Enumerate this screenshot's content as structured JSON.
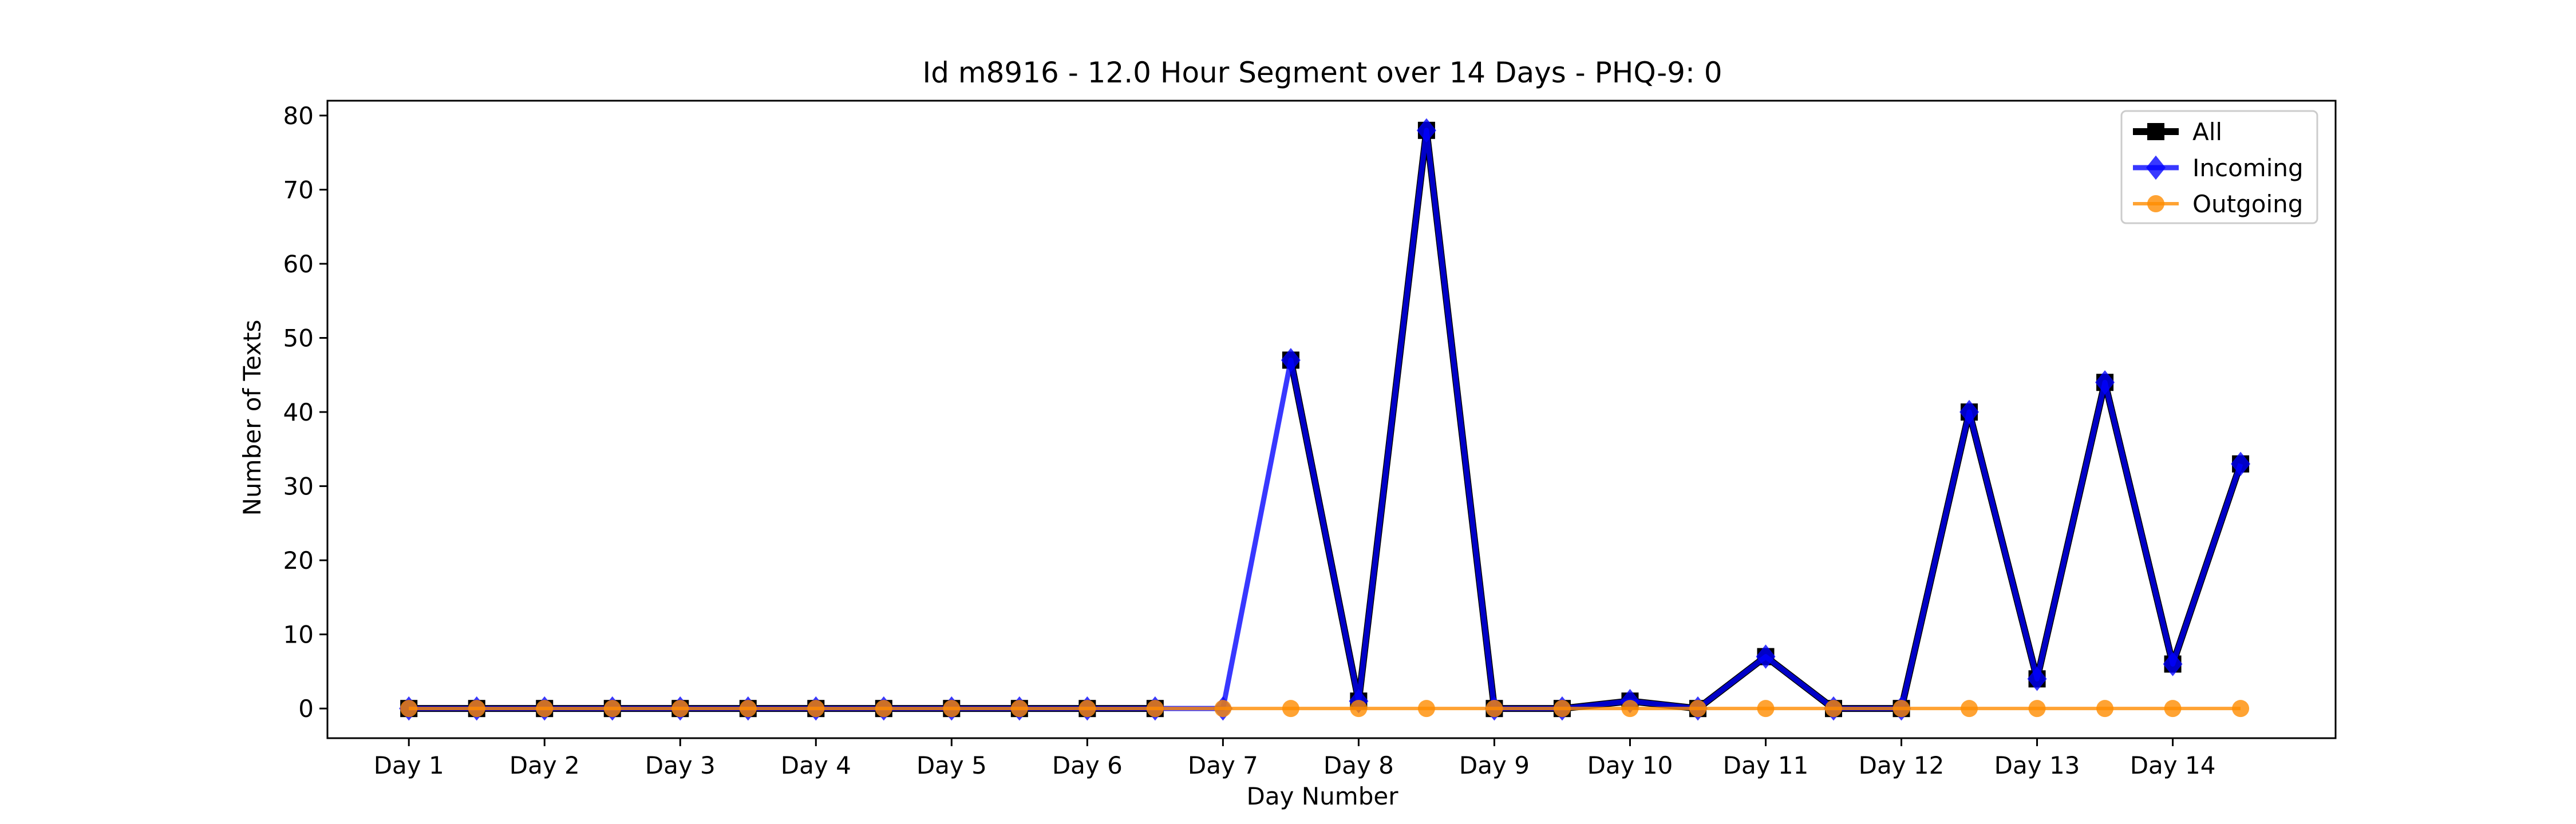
{
  "chart_data": {
    "type": "line",
    "title": "Id m8916 - 12.0 Hour Segment over 14 Days - PHQ-9: 0",
    "xlabel": "Day Number",
    "ylabel": "Number of Texts",
    "categories": [
      "Day 1",
      "Day 2",
      "Day 3",
      "Day 4",
      "Day 5",
      "Day 6",
      "Day 7",
      "Day 8",
      "Day 9",
      "Day 10",
      "Day 11",
      "Day 12",
      "Day 13",
      "Day 14"
    ],
    "x": [
      1,
      1.5,
      2,
      2.5,
      3,
      3.5,
      4,
      4.5,
      5,
      5.5,
      6,
      6.5,
      7,
      7.5,
      8,
      8.5,
      9,
      9.5,
      10,
      10.5,
      11,
      11.5,
      12,
      12.5,
      13,
      13.5,
      14,
      14.5
    ],
    "xlim": [
      0.4,
      15.2
    ],
    "ylim": [
      -4,
      82
    ],
    "yticks": [
      0,
      10,
      20,
      30,
      40,
      50,
      60,
      70,
      80
    ],
    "grid": false,
    "legend_position": "top-right",
    "series": [
      {
        "name": "All",
        "color": "#000000",
        "marker": "square",
        "values": [
          0,
          0,
          0,
          0,
          0,
          0,
          0,
          0,
          0,
          0,
          0,
          0,
          null,
          47,
          1,
          78,
          0,
          0,
          1,
          0,
          7,
          0,
          0,
          40,
          4,
          44,
          6,
          33
        ]
      },
      {
        "name": "Incoming",
        "color": "#0000ff",
        "marker": "diamond",
        "values": [
          0,
          0,
          0,
          0,
          0,
          0,
          0,
          0,
          0,
          0,
          0,
          0,
          0,
          47,
          1,
          78,
          0,
          0,
          1,
          0,
          7,
          0,
          0,
          40,
          4,
          44,
          6,
          33
        ]
      },
      {
        "name": "Outgoing",
        "color": "#ff8c00",
        "marker": "circle",
        "values": [
          0,
          0,
          0,
          0,
          0,
          0,
          0,
          0,
          0,
          0,
          0,
          0,
          0,
          0,
          0,
          0,
          0,
          0,
          0,
          0,
          0,
          0,
          0,
          0,
          0,
          0,
          0,
          0
        ]
      }
    ]
  }
}
